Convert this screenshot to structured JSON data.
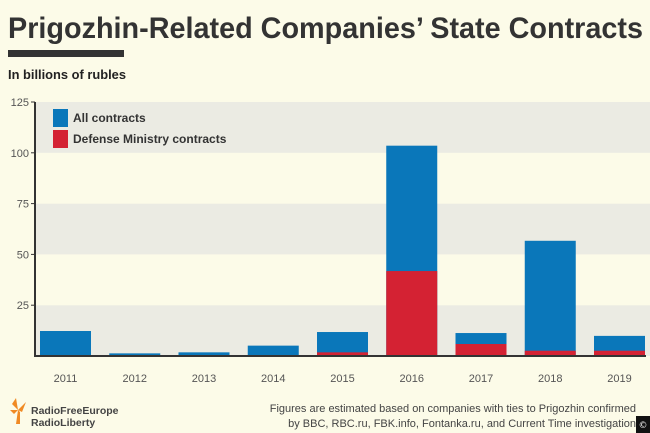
{
  "chart_data": {
    "type": "bar",
    "stacked": "overlay",
    "title": "Prigozhin-Related Companies’ State Contracts",
    "subtitle": "In billions of rubles",
    "categories": [
      "2011",
      "2012",
      "2013",
      "2014",
      "2015",
      "2016",
      "2017",
      "2018",
      "2019"
    ],
    "series": [
      {
        "name": "All contracts",
        "color": "#0a77ba",
        "values": [
          12.3,
          1.3,
          1.8,
          5.1,
          11.8,
          103.5,
          11.3,
          56.7,
          9.9
        ]
      },
      {
        "name": "Defense Ministry contracts",
        "color": "#d42233",
        "values": [
          0,
          0,
          0,
          0,
          1.8,
          41.8,
          5.9,
          2.6,
          2.6
        ]
      }
    ],
    "ylim": [
      0,
      125
    ],
    "yticks": [
      "25",
      "50",
      "75",
      "100",
      "125"
    ],
    "ytick_values": [
      25,
      50,
      75,
      100,
      125
    ],
    "grid": "alternating horizontal bands",
    "legend": "top-left",
    "note": [
      "Figures are estimated based on companies with ties to Prigozhin confirmed",
      "by BBC, RBC.ru, FBK.info, Fontanka.ru, and Current Time investigation"
    ]
  },
  "logo": {
    "line1": "RadioFreeEurope",
    "line2": "RadioLiberty"
  },
  "badge": "©",
  "colors": {
    "background": "#fcfbe8",
    "band": "#ebebe3",
    "axis": "#333333"
  }
}
